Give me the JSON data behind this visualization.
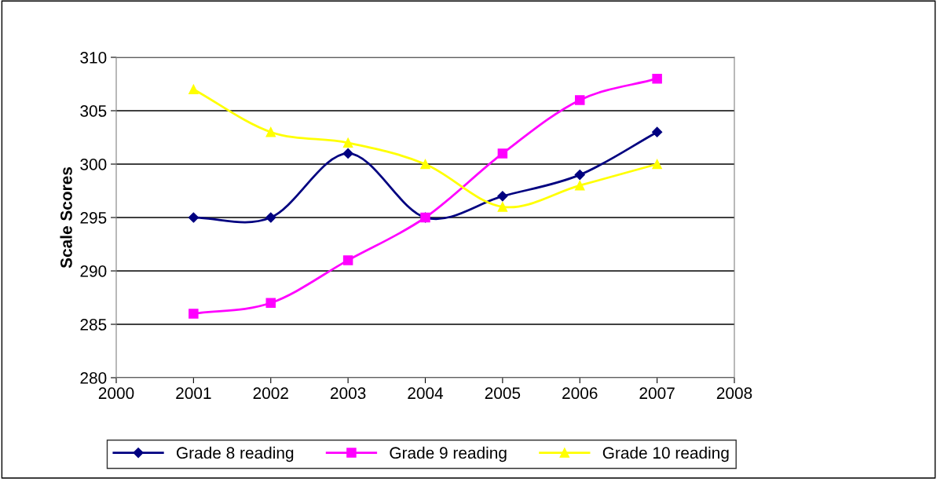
{
  "chart_data": {
    "type": "line",
    "ylabel": "Scale Scores",
    "x": [
      2001,
      2002,
      2003,
      2004,
      2005,
      2006,
      2007
    ],
    "series": [
      {
        "name": "Grade 8 reading",
        "color": "#000080",
        "marker": "diamond",
        "values": [
          295,
          295,
          301,
          295,
          297,
          299,
          303
        ]
      },
      {
        "name": "Grade 9 reading",
        "color": "#ff00ff",
        "marker": "square",
        "values": [
          286,
          287,
          291,
          295,
          301,
          306,
          308
        ]
      },
      {
        "name": "Grade 10 reading",
        "color": "#ffff00",
        "marker": "triangle",
        "values": [
          307,
          303,
          302,
          300,
          296,
          298,
          300
        ]
      }
    ],
    "xlim": [
      2000,
      2008
    ],
    "xticks": [
      2000,
      2001,
      2002,
      2003,
      2004,
      2005,
      2006,
      2007,
      2008
    ],
    "ylim": [
      280,
      310
    ],
    "yticks": [
      280,
      285,
      290,
      295,
      300,
      305,
      310
    ],
    "grid": "y",
    "legend": "bottom"
  }
}
